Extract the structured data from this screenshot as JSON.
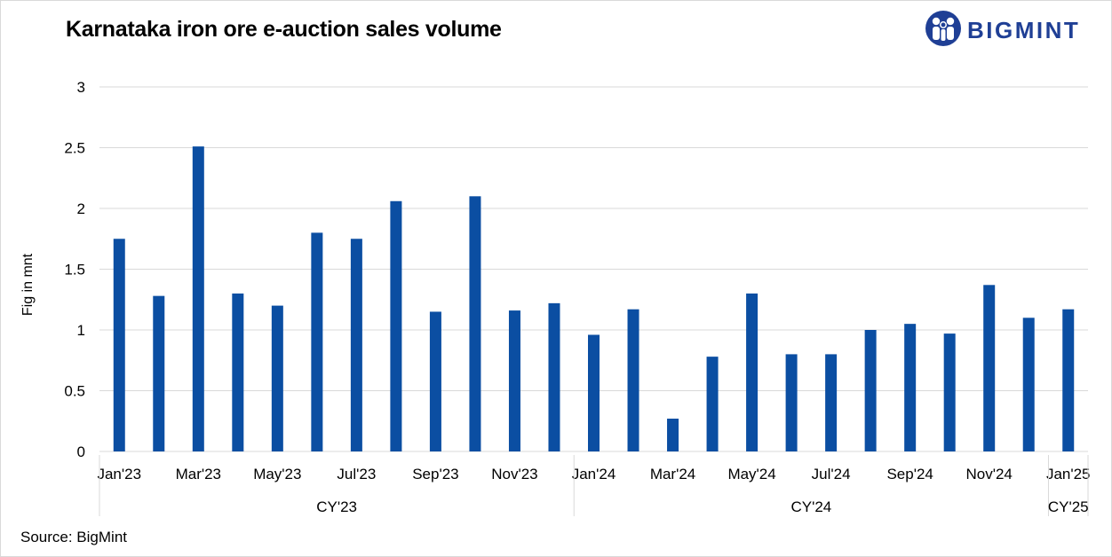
{
  "title": "Karnataka iron ore e-auction sales volume",
  "logo_text": "BIGMINT",
  "source": "Source: BigMint",
  "colors": {
    "bar": "#0b4ea2",
    "grid": "#d9d9d9",
    "logo": "#1f3f95"
  },
  "chart_data": {
    "type": "bar",
    "title": "Karnataka iron ore e-auction sales volume",
    "ylabel": "Fig in mnt",
    "xlabel": "",
    "ylim": [
      0,
      3
    ],
    "yticks": [
      "0",
      "0.5",
      "1",
      "1.5",
      "2",
      "2.5",
      "3"
    ],
    "grid": true,
    "categories": [
      "Jan'23",
      "Feb'23",
      "Mar'23",
      "Apr'23",
      "May'23",
      "Jun'23",
      "Jul'23",
      "Aug'23",
      "Sep'23",
      "Oct'23",
      "Nov'23",
      "Dec'23",
      "Jan'24",
      "Feb'24",
      "Mar'24",
      "Apr'24",
      "May'24",
      "Jun'24",
      "Jul'24",
      "Aug'24",
      "Sep'24",
      "Oct'24",
      "Nov'24",
      "Dec'24",
      "Jan'25"
    ],
    "x_tick_labels": [
      "Jan'23",
      "",
      "Mar'23",
      "",
      "May'23",
      "",
      "Jul'23",
      "",
      "Sep'23",
      "",
      "Nov'23",
      "",
      "Jan'24",
      "",
      "Mar'24",
      "",
      "May'24",
      "",
      "Jul'24",
      "",
      "Sep'24",
      "",
      "Nov'24",
      "",
      "Jan'25"
    ],
    "values": [
      1.75,
      1.28,
      2.51,
      1.3,
      1.2,
      1.8,
      1.75,
      2.06,
      1.15,
      2.1,
      1.16,
      1.22,
      0.96,
      1.17,
      0.27,
      0.78,
      1.3,
      0.8,
      0.8,
      1.0,
      1.05,
      0.97,
      1.37,
      1.1,
      1.17
    ],
    "groups": [
      {
        "label": "CY'23",
        "count": 12
      },
      {
        "label": "CY'24",
        "count": 12
      },
      {
        "label": "CY'25",
        "count": 1
      }
    ]
  }
}
